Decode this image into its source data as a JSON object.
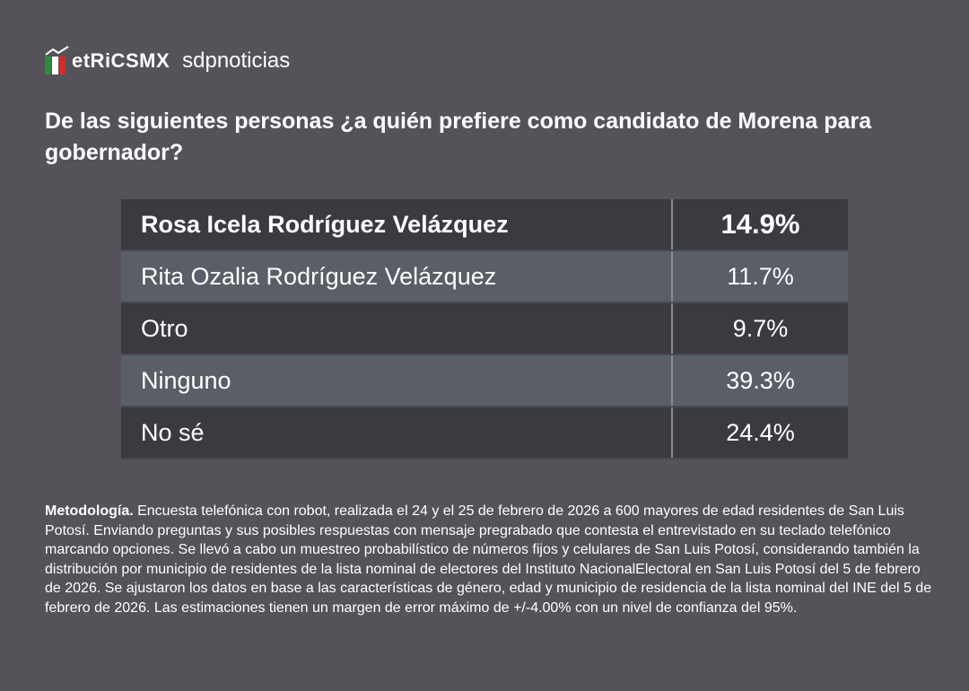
{
  "header": {
    "brand": "etRiCSMX",
    "partner": "sdpnoticias"
  },
  "title": "De las siguientes personas ¿a quién prefiere como candidato de Morena para gobernador?",
  "table": {
    "rows": [
      [
        "Rosa Icela Rodríguez Velázquez",
        "14.9%"
      ],
      [
        "Rita Ozalia Rodríguez Velázquez",
        "11.7%"
      ],
      [
        "Otro",
        "9.7%"
      ],
      [
        "Ninguno",
        "39.3%"
      ],
      [
        "No sé",
        "24.4%"
      ]
    ]
  },
  "methodology": {
    "label": "Metodología.",
    "text": "Encuesta telefónica con robot, realizada el 24 y el 25 de febrero de 2026 a 600 mayores de edad residentes de San Luis Potosí. Enviando preguntas y sus posibles respuestas con mensaje pregrabado que contesta el entrevistado en su teclado telefónico marcando opciones. Se llevó a cabo un muestreo probabilístico de números fijos y celulares de San Luis Potosí, considerando también la distribución por municipio de residentes de la lista nominal de electores del Instituto NacionalElectoral en San Luis Potosí del 5 de febrero de 2026. Se ajustaron los datos en base a las características de género, edad y municipio de residencia de la lista nominal del INE del 5 de febrero de 2026. Las estimaciones tienen un margen de error máximo de +/-4.00% con un nivel de confianza del 95%."
  }
}
